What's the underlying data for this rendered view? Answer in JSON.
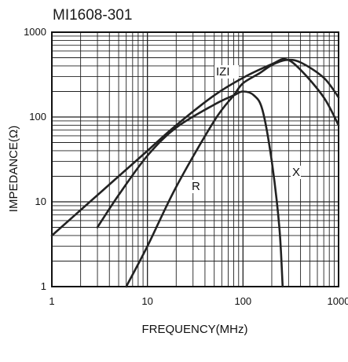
{
  "chart_data": {
    "type": "line",
    "title": "MI1608-301",
    "xlabel": "FREQUENCY(MHz)",
    "ylabel": "IMPEDANCE(Ω)",
    "x_scale": "log",
    "y_scale": "log",
    "xlim": [
      1,
      1000
    ],
    "ylim": [
      1,
      1000
    ],
    "x_ticks": [
      "1",
      "10",
      "100",
      "1000"
    ],
    "y_ticks": [
      "1",
      "10",
      "100",
      "1000"
    ],
    "grid": true,
    "legend": "none",
    "line_color": "#222222",
    "series": [
      {
        "name": "IZI",
        "x": [
          1,
          2,
          5,
          10,
          20,
          50,
          100,
          200,
          280,
          400,
          700,
          1000
        ],
        "y": [
          4,
          8,
          20,
          40,
          80,
          180,
          290,
          420,
          480,
          360,
          170,
          80
        ]
      },
      {
        "name": "R",
        "x": [
          6,
          10,
          20,
          50,
          80,
          100,
          150,
          200,
          280,
          400,
          700,
          1000
        ],
        "y": [
          1,
          3,
          15,
          90,
          180,
          250,
          330,
          410,
          470,
          440,
          290,
          170
        ]
      },
      {
        "name": "X",
        "x": [
          3,
          5,
          10,
          20,
          50,
          80,
          100,
          130,
          160,
          200,
          240,
          260
        ],
        "y": [
          5,
          12,
          35,
          75,
          140,
          180,
          200,
          180,
          120,
          30,
          5,
          1
        ]
      }
    ]
  }
}
